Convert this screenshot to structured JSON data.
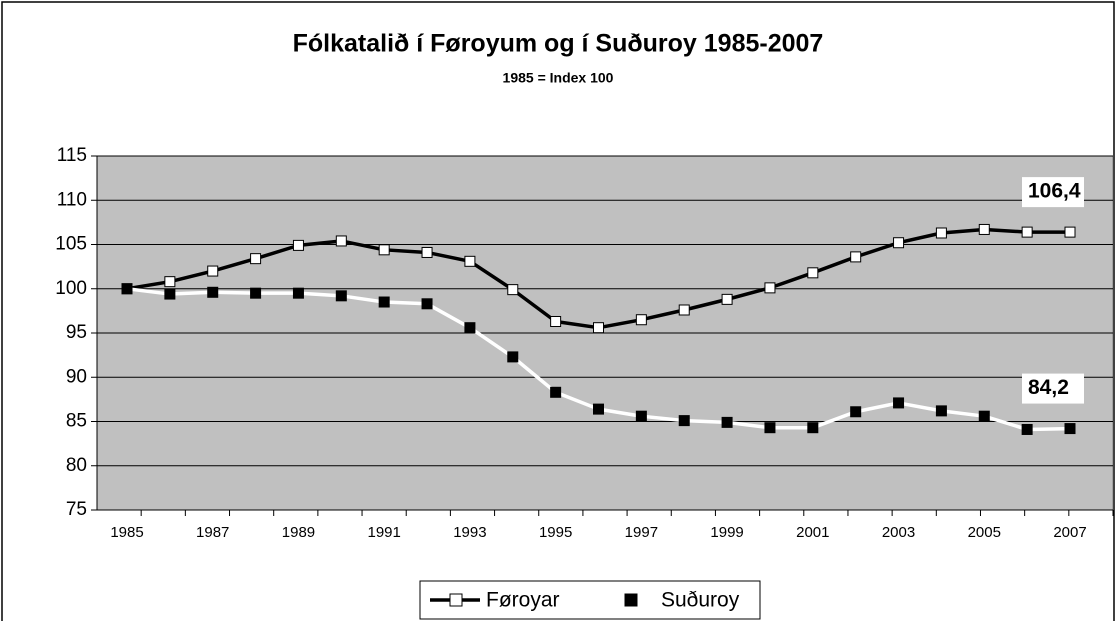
{
  "chart_data": {
    "type": "line",
    "title": "Fólkatalið í Føroyum og í Suðuroy 1985-2007",
    "subtitle": "1985 = Index 100",
    "categories": [
      "1985",
      null,
      "1987",
      null,
      "1989",
      null,
      "1991",
      null,
      "1993",
      null,
      "1995",
      null,
      "1997",
      null,
      "1999",
      null,
      "2001",
      null,
      "2003",
      null,
      "2005",
      null,
      "2007"
    ],
    "series": [
      {
        "name": "Føroyar",
        "color": "#000000",
        "marker_color": "#ffffff",
        "values": [
          100,
          100.8,
          102,
          103.4,
          104.9,
          105.4,
          104.4,
          104.1,
          103.1,
          99.9,
          96.3,
          95.6,
          96.5,
          97.6,
          98.8,
          100.1,
          101.8,
          103.6,
          105.2,
          106.3,
          106.7,
          106.4,
          106.4
        ],
        "value_labels": [
          null,
          null,
          null,
          null,
          null,
          null,
          null,
          null,
          null,
          null,
          null,
          null,
          null,
          null,
          null,
          null,
          null,
          null,
          null,
          null,
          null,
          null,
          "106,4"
        ]
      },
      {
        "name": "Suðuroy",
        "color": "#ffffff",
        "marker_color": "#000000",
        "values": [
          100,
          99.4,
          99.6,
          99.5,
          99.5,
          99.2,
          98.5,
          98.3,
          95.6,
          92.3,
          88.3,
          86.4,
          85.6,
          85.1,
          84.9,
          84.3,
          84.3,
          86.1,
          87.1,
          86.2,
          85.6,
          84.1,
          84.2
        ],
        "value_labels": [
          null,
          null,
          null,
          null,
          null,
          null,
          null,
          null,
          null,
          null,
          null,
          null,
          null,
          null,
          null,
          null,
          null,
          null,
          null,
          null,
          null,
          null,
          "84,2"
        ]
      }
    ],
    "ylim": [
      75,
      115
    ],
    "yticks": [
      75,
      80,
      85,
      90,
      95,
      100,
      105,
      110,
      115
    ],
    "grid": true,
    "plot_background": "#c0c0c0",
    "legend": "bottom"
  }
}
